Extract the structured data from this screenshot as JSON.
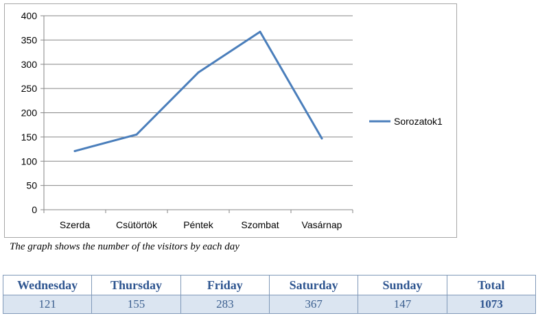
{
  "chart_data": {
    "type": "line",
    "categories": [
      "Szerda",
      "Csütörtök",
      "Péntek",
      "Szombat",
      "Vasárnap"
    ],
    "series": [
      {
        "name": "Sorozatok1",
        "values": [
          121,
          155,
          283,
          367,
          147
        ],
        "color": "#4a7ebb"
      }
    ],
    "yticks": [
      "0",
      "50",
      "100",
      "150",
      "200",
      "250",
      "300",
      "350",
      "400"
    ],
    "ylim": [
      0,
      400
    ],
    "grid": true,
    "legend_position": "right"
  },
  "caption": "The graph shows the number of the visitors by each day",
  "table": {
    "headers": [
      "Wednesday",
      "Thursday",
      "Friday",
      "Saturday",
      "Sunday",
      "Total"
    ],
    "values": [
      "121",
      "155",
      "283",
      "367",
      "147",
      "1073"
    ],
    "header_color": "#2e5590",
    "cell_background": "#dbe5f1"
  }
}
